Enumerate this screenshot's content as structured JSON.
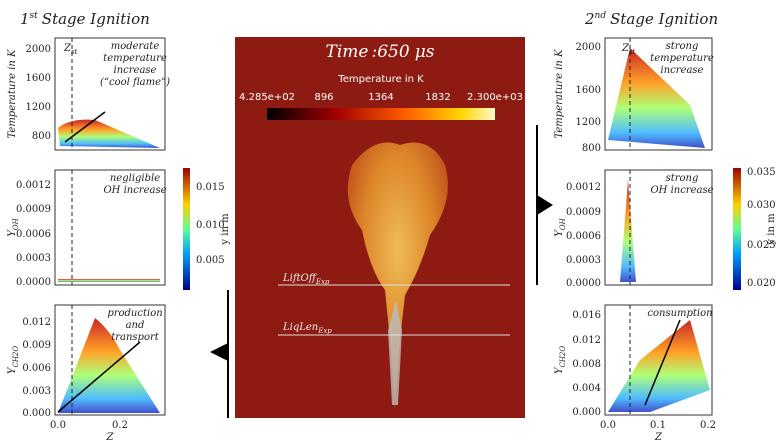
{
  "left": {
    "title": {
      "number": "1",
      "sup": "st",
      "text": "Stage Ignition"
    },
    "panels": [
      {
        "ylabel": {
          "main": "Temperature in K"
        },
        "yticks": [
          "2000",
          "1600",
          "1200",
          "800"
        ],
        "zst": {
          "main": "Z",
          "sub": "st"
        },
        "note": [
          "moderate",
          "temperature",
          "increase",
          "(“cool flame”)"
        ]
      },
      {
        "ylabel": {
          "main": "Y",
          "sub": "OH"
        },
        "yticks": [
          "0.0012",
          "0.0009",
          "0.0006",
          "0.0003",
          "0.0000"
        ],
        "note": [
          "negligible",
          "OH increase"
        ]
      },
      {
        "ylabel": {
          "main": "Y",
          "sub": "CH2O"
        },
        "yticks": [
          "0.012",
          "0.009",
          "0.006",
          "0.003",
          "0.000"
        ],
        "note": [
          "production",
          "and",
          "transport"
        ]
      }
    ],
    "xticks": [
      "0.0",
      "0.2"
    ],
    "xlabel": "Z",
    "colorbar": {
      "ticks": [
        "0.015",
        "0.010",
        "0.005"
      ],
      "label": "y in m"
    }
  },
  "center": {
    "time": {
      "label": "Time",
      "value": ":650",
      "unit": "μs"
    },
    "colorbar": {
      "title": "Temperature in K",
      "ticks": [
        "4.285e+02",
        "896",
        "1364",
        "1832",
        "2.300e+03"
      ]
    },
    "lines": [
      {
        "main": "LiftOff",
        "sub": "Exp"
      },
      {
        "main": "LiqLen",
        "sub": "Exp"
      }
    ]
  },
  "right": {
    "title": {
      "number": "2",
      "sup": "nd",
      "text": "Stage Ignition"
    },
    "panels": [
      {
        "ylabel": {
          "main": "Temperature in K"
        },
        "yticks": [
          "2000",
          "1600",
          "1200",
          "800"
        ],
        "zst": {
          "main": "Z",
          "sub": "st"
        },
        "note": [
          "strong",
          "temperature",
          "increase"
        ]
      },
      {
        "ylabel": {
          "main": "Y",
          "sub": "OH"
        },
        "yticks": [
          "0.0012",
          "0.0009",
          "0.0006",
          "0.0003",
          "0.0000"
        ],
        "note": [
          "strong",
          "OH increase"
        ]
      },
      {
        "ylabel": {
          "main": "Y",
          "sub": "CH2O"
        },
        "yticks": [
          "0.016",
          "0.012",
          "0.008",
          "0.004",
          "0.000"
        ],
        "note": [
          "consumption"
        ]
      }
    ],
    "xticks": [
      "0.0",
      "0.1",
      "0.2"
    ],
    "xlabel": "Z",
    "colorbar": {
      "ticks": [
        "0.035",
        "0.030",
        "0.025",
        "0.020"
      ],
      "label": "y in m"
    }
  }
}
